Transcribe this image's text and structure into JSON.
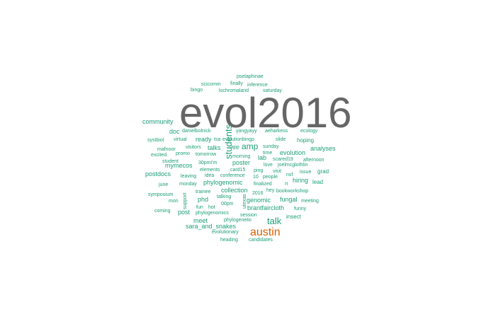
{
  "chart_data": {
    "type": "wordcloud",
    "colors": {
      "top": "#666666",
      "second": "#d95f02",
      "rest": "#1b9e77"
    },
    "words": [
      {
        "text": "evol2016",
        "weight": 100,
        "color": "#666666"
      },
      {
        "text": "austin",
        "weight": 30,
        "color": "#d95f02"
      },
      {
        "text": "students",
        "weight": 22,
        "color": "#1b9e77"
      },
      {
        "text": "talk",
        "weight": 20,
        "color": "#1b9e77"
      },
      {
        "text": "amp",
        "weight": 18,
        "color": "#1b9e77"
      },
      {
        "text": "community",
        "weight": 13,
        "color": "#1b9e77"
      },
      {
        "text": "postdocs",
        "weight": 13,
        "color": "#1b9e77"
      },
      {
        "text": "analyses",
        "weight": 12,
        "color": "#1b9e77"
      },
      {
        "text": "evolution",
        "weight": 12,
        "color": "#1b9e77"
      },
      {
        "text": "phylogenomic",
        "weight": 12,
        "color": "#1b9e77"
      },
      {
        "text": "genomic",
        "weight": 12,
        "color": "#1b9e77"
      },
      {
        "text": "fungal",
        "weight": 12,
        "color": "#1b9e77"
      },
      {
        "text": "brantfaircloth",
        "weight": 12,
        "color": "#1b9e77"
      },
      {
        "text": "sara_and_snakes",
        "weight": 12,
        "color": "#1b9e77"
      },
      {
        "text": "hiring",
        "weight": 12,
        "color": "#1b9e77"
      },
      {
        "text": "ready",
        "weight": 11,
        "color": "#1b9e77"
      },
      {
        "text": "doc",
        "weight": 11,
        "color": "#1b9e77"
      },
      {
        "text": "talks",
        "weight": 11,
        "color": "#1b9e77"
      },
      {
        "text": "poster",
        "weight": 11,
        "color": "#1b9e77"
      },
      {
        "text": "mymecos",
        "weight": 11,
        "color": "#1b9e77"
      },
      {
        "text": "collection",
        "weight": 11,
        "color": "#1b9e77"
      },
      {
        "text": "phd",
        "weight": 11,
        "color": "#1b9e77"
      },
      {
        "text": "post",
        "weight": 11,
        "color": "#1b9e77"
      },
      {
        "text": "meet",
        "weight": 11,
        "color": "#1b9e77"
      },
      {
        "text": "insect",
        "weight": 10,
        "color": "#1b9e77"
      },
      {
        "text": "lab",
        "weight": 10,
        "color": "#1b9e77"
      },
      {
        "text": "lead",
        "weight": 10,
        "color": "#1b9e77"
      },
      {
        "text": "grad",
        "weight": 10,
        "color": "#1b9e77"
      },
      {
        "text": "hoping",
        "weight": 10,
        "color": "#1b9e77"
      },
      {
        "text": "pselaphinae",
        "weight": 9,
        "color": "#1b9e77"
      },
      {
        "text": "finally",
        "weight": 9,
        "color": "#1b9e77"
      },
      {
        "text": "inference",
        "weight": 9,
        "color": "#1b9e77"
      },
      {
        "text": "scicomm",
        "weight": 9,
        "color": "#1b9e77"
      },
      {
        "text": "bingo",
        "weight": 9,
        "color": "#1b9e77"
      },
      {
        "text": "lochromaland",
        "weight": 9,
        "color": "#1b9e77"
      },
      {
        "text": "saturday",
        "weight": 9,
        "color": "#1b9e77"
      },
      {
        "text": "danielbolnick",
        "weight": 9,
        "color": "#1b9e77"
      },
      {
        "text": "yangyayy",
        "weight": 9,
        "color": "#1b9e77"
      },
      {
        "text": "aeharkess",
        "weight": 9,
        "color": "#1b9e77"
      },
      {
        "text": "ecology",
        "weight": 9,
        "color": "#1b9e77"
      },
      {
        "text": "systbiol",
        "weight": 9,
        "color": "#1b9e77"
      },
      {
        "text": "virtual",
        "weight": 9,
        "color": "#1b9e77"
      },
      {
        "text": "tsa",
        "weight": 9,
        "color": "#1b9e77"
      },
      {
        "text": "evolutionbingo",
        "weight": 9,
        "color": "#1b9e77"
      },
      {
        "text": "slide",
        "weight": 9,
        "color": "#1b9e77"
      },
      {
        "text": "mafnoor",
        "weight": 9,
        "color": "#1b9e77"
      },
      {
        "text": "visitors",
        "weight": 9,
        "color": "#1b9e77"
      },
      {
        "text": "app",
        "weight": 9,
        "color": "#1b9e77"
      },
      {
        "text": "sunday",
        "weight": 9,
        "color": "#1b9e77"
      },
      {
        "text": "excited",
        "weight": 9,
        "color": "#1b9e77"
      },
      {
        "text": "promo",
        "weight": 9,
        "color": "#1b9e77"
      },
      {
        "text": "tomorrow",
        "weight": 9,
        "color": "#1b9e77"
      },
      {
        "text": "time",
        "weight": 9,
        "color": "#1b9e77"
      },
      {
        "text": "student",
        "weight": 9,
        "color": "#1b9e77"
      },
      {
        "text": "morning",
        "weight": 9,
        "color": "#1b9e77"
      },
      {
        "text": "scared19",
        "weight": 9,
        "color": "#1b9e77"
      },
      {
        "text": "afternoon",
        "weight": 9,
        "color": "#1b9e77"
      },
      {
        "text": "30pmi'm",
        "weight": 9,
        "color": "#1b9e77"
      },
      {
        "text": "love",
        "weight": 9,
        "color": "#1b9e77"
      },
      {
        "text": "joelmcglothlin",
        "weight": 9,
        "color": "#1b9e77"
      },
      {
        "text": "elements",
        "weight": 9,
        "color": "#1b9e77"
      },
      {
        "text": "card15",
        "weight": 9,
        "color": "#1b9e77"
      },
      {
        "text": "ping",
        "weight": 9,
        "color": "#1b9e77"
      },
      {
        "text": "visit",
        "weight": 9,
        "color": "#1b9e77"
      },
      {
        "text": "issue",
        "weight": 9,
        "color": "#1b9e77"
      },
      {
        "text": "leaving",
        "weight": 9,
        "color": "#1b9e77"
      },
      {
        "text": "idea",
        "weight": 9,
        "color": "#1b9e77"
      },
      {
        "text": "conference",
        "weight": 9,
        "color": "#1b9e77"
      },
      {
        "text": "10",
        "weight": 9,
        "color": "#1b9e77"
      },
      {
        "text": "people",
        "weight": 9,
        "color": "#1b9e77"
      },
      {
        "text": "nsf",
        "weight": 9,
        "color": "#1b9e77"
      },
      {
        "text": "june",
        "weight": 9,
        "color": "#1b9e77"
      },
      {
        "text": "monday",
        "weight": 9,
        "color": "#1b9e77"
      },
      {
        "text": "finalized",
        "weight": 9,
        "color": "#1b9e77"
      },
      {
        "text": "rt",
        "weight": 9,
        "color": "#1b9e77"
      },
      {
        "text": "trainee",
        "weight": 9,
        "color": "#1b9e77"
      },
      {
        "text": "2016",
        "weight": 9,
        "color": "#1b9e77"
      },
      {
        "text": "hey",
        "weight": 9,
        "color": "#1b9e77"
      },
      {
        "text": "bookworkshop",
        "weight": 9,
        "color": "#1b9e77"
      },
      {
        "text": "symposium",
        "weight": 9,
        "color": "#1b9e77"
      },
      {
        "text": "support",
        "weight": 9,
        "color": "#1b9e77"
      },
      {
        "text": "talking",
        "weight": 9,
        "color": "#1b9e77"
      },
      {
        "text": "mon",
        "weight": 9,
        "color": "#1b9e77"
      },
      {
        "text": "00pm",
        "weight": 9,
        "color": "#1b9e77"
      },
      {
        "text": "utexas",
        "weight": 9,
        "color": "#1b9e77"
      },
      {
        "text": "meeting",
        "weight": 9,
        "color": "#1b9e77"
      },
      {
        "text": "fun",
        "weight": 9,
        "color": "#1b9e77"
      },
      {
        "text": "hot",
        "weight": 9,
        "color": "#1b9e77"
      },
      {
        "text": "funny",
        "weight": 9,
        "color": "#1b9e77"
      },
      {
        "text": "coming",
        "weight": 9,
        "color": "#1b9e77"
      },
      {
        "text": "phylogenomics",
        "weight": 9,
        "color": "#1b9e77"
      },
      {
        "text": "session",
        "weight": 9,
        "color": "#1b9e77"
      },
      {
        "text": "phylogenetic",
        "weight": 9,
        "color": "#1b9e77"
      },
      {
        "text": "evolutionary",
        "weight": 9,
        "color": "#1b9e77"
      },
      {
        "text": "heading",
        "weight": 9,
        "color": "#1b9e77"
      },
      {
        "text": "candidates",
        "weight": 9,
        "color": "#1b9e77"
      }
    ]
  }
}
